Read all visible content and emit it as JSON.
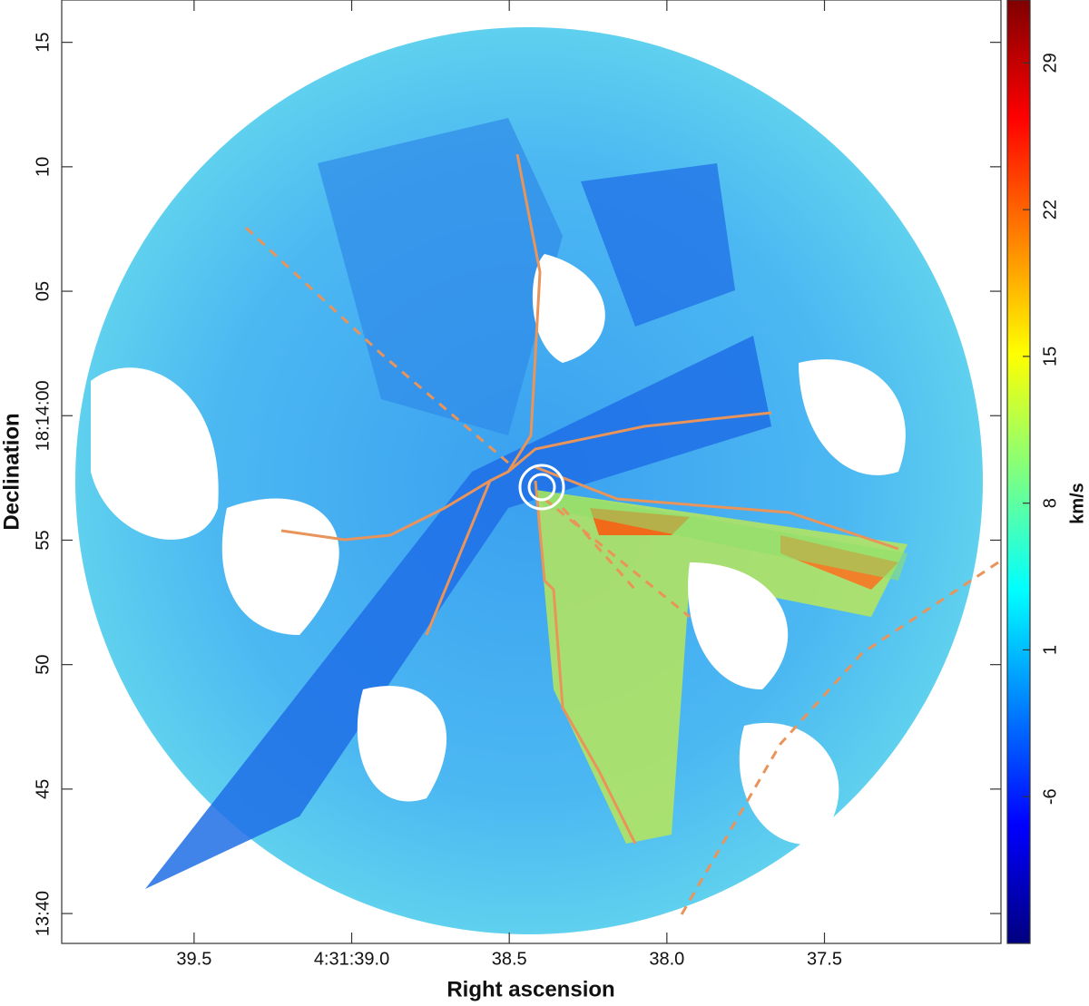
{
  "chart_data": {
    "type": "image",
    "xlabel": "Right ascension",
    "ylabel": "Declination",
    "xlim": [
      39.92,
      36.94
    ],
    "xticks": [
      39.5,
      {
        "value": 39.0,
        "label": "4:31:39.0"
      },
      38.5,
      {
        "value": 38.0,
        "label": "38.0"
      },
      37.5
    ],
    "ylim": [
      38.8,
      76.7
    ],
    "yticks": [
      {
        "value": 40,
        "label": "13:40"
      },
      45,
      50,
      55,
      {
        "value": 60,
        "label": "18:14:00"
      },
      {
        "value": 65,
        "label": "05"
      },
      {
        "value": 70,
        "label": "10"
      },
      {
        "value": 75,
        "label": "15"
      }
    ],
    "colormap": "jet",
    "colorbar": {
      "label": "km/s",
      "lim": [
        -13,
        32
      ],
      "ticks": [
        -6,
        1,
        8,
        15,
        22,
        29
      ]
    }
  }
}
